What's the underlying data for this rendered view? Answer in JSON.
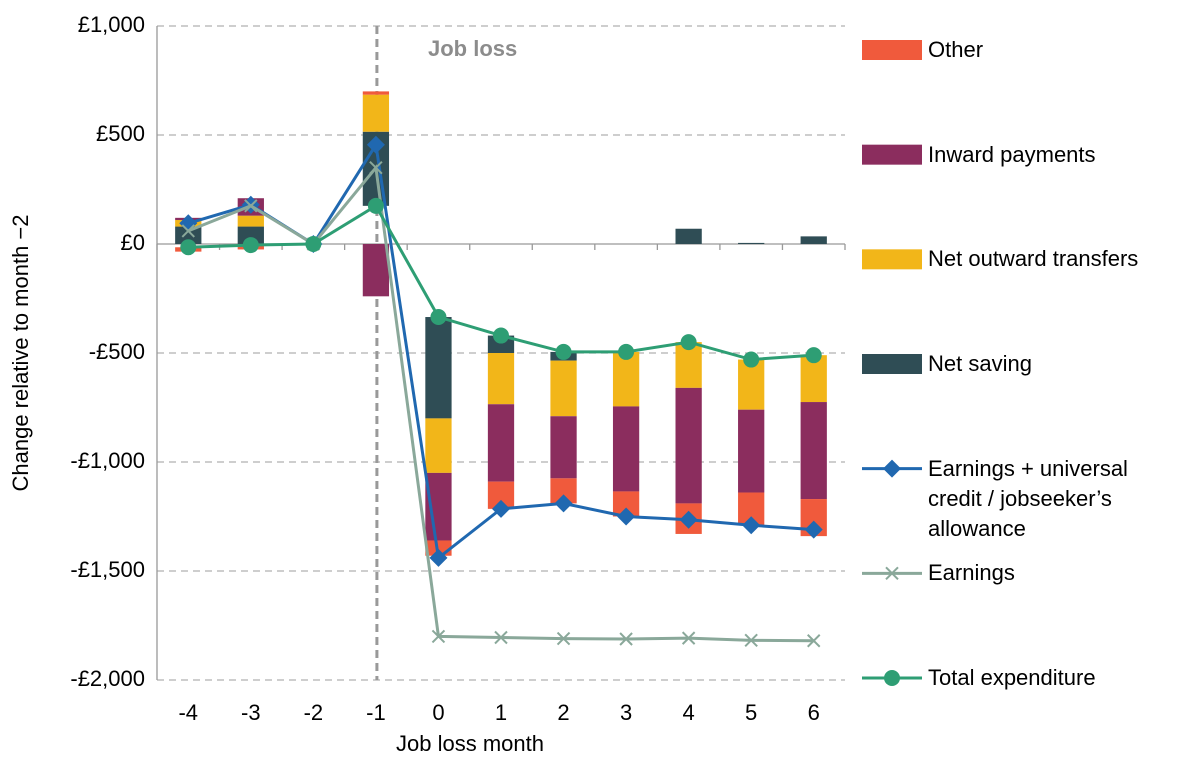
{
  "chart_data": {
    "type": "bar",
    "stacked": true,
    "x_label": "Job loss month",
    "y_label": "Change relative to month −2",
    "annotation": "Job loss",
    "categories": [
      "-4",
      "-3",
      "-2",
      "-1",
      "0",
      "1",
      "2",
      "3",
      "4",
      "5",
      "6"
    ],
    "ylim": [
      -2000,
      1000
    ],
    "yticks": [
      {
        "value": 1000,
        "label": "£1,000"
      },
      {
        "value": 500,
        "label": "£500"
      },
      {
        "value": 0,
        "label": "£0"
      },
      {
        "value": -500,
        "label": "-£500"
      },
      {
        "value": -1000,
        "label": "-£1,000"
      },
      {
        "value": -1500,
        "label": "-£1,500"
      },
      {
        "value": -2000,
        "label": "-£2,000"
      }
    ],
    "grid": true,
    "legend": "right",
    "series": [
      {
        "name": "Other",
        "kind": "bar",
        "color": "#f05a3c",
        "values": [
          -20,
          -20,
          0,
          15,
          -70,
          -125,
          -115,
          -115,
          -140,
          -150,
          -170
        ]
      },
      {
        "name": "Inward payments",
        "kind": "bar",
        "color": "#8b2d5e",
        "values": [
          10,
          80,
          0,
          -240,
          -310,
          -355,
          -285,
          -390,
          -530,
          -380,
          -445
        ]
      },
      {
        "name": "Net outward transfers",
        "kind": "bar",
        "color": "#f2b619",
        "values": [
          30,
          50,
          0,
          170,
          -250,
          -235,
          -255,
          -250,
          -210,
          -230,
          -215
        ]
      },
      {
        "name": "Net saving",
        "kind": "bar",
        "color": "#2f4d55",
        "values": [
          80,
          80,
          0,
          340,
          -465,
          -80,
          -40,
          0,
          70,
          5,
          35
        ]
      },
      {
        "name": "Earnings + universal credit / jobseeker’s allowance",
        "kind": "line",
        "marker": "diamond",
        "color": "#2068b0",
        "values": [
          95,
          180,
          0,
          455,
          -1440,
          -1215,
          -1190,
          -1250,
          -1265,
          -1290,
          -1310
        ]
      },
      {
        "name": "Earnings",
        "kind": "line",
        "marker": "x",
        "color": "#8aa89a",
        "values": [
          60,
          175,
          0,
          350,
          -1800,
          -1805,
          -1810,
          -1812,
          -1808,
          -1818,
          -1820
        ]
      },
      {
        "name": "Total expenditure",
        "kind": "line",
        "marker": "circle",
        "color": "#2e9e74",
        "values": [
          -15,
          -5,
          0,
          175,
          -335,
          -420,
          -495,
          -495,
          -450,
          -530,
          -510
        ]
      }
    ]
  }
}
